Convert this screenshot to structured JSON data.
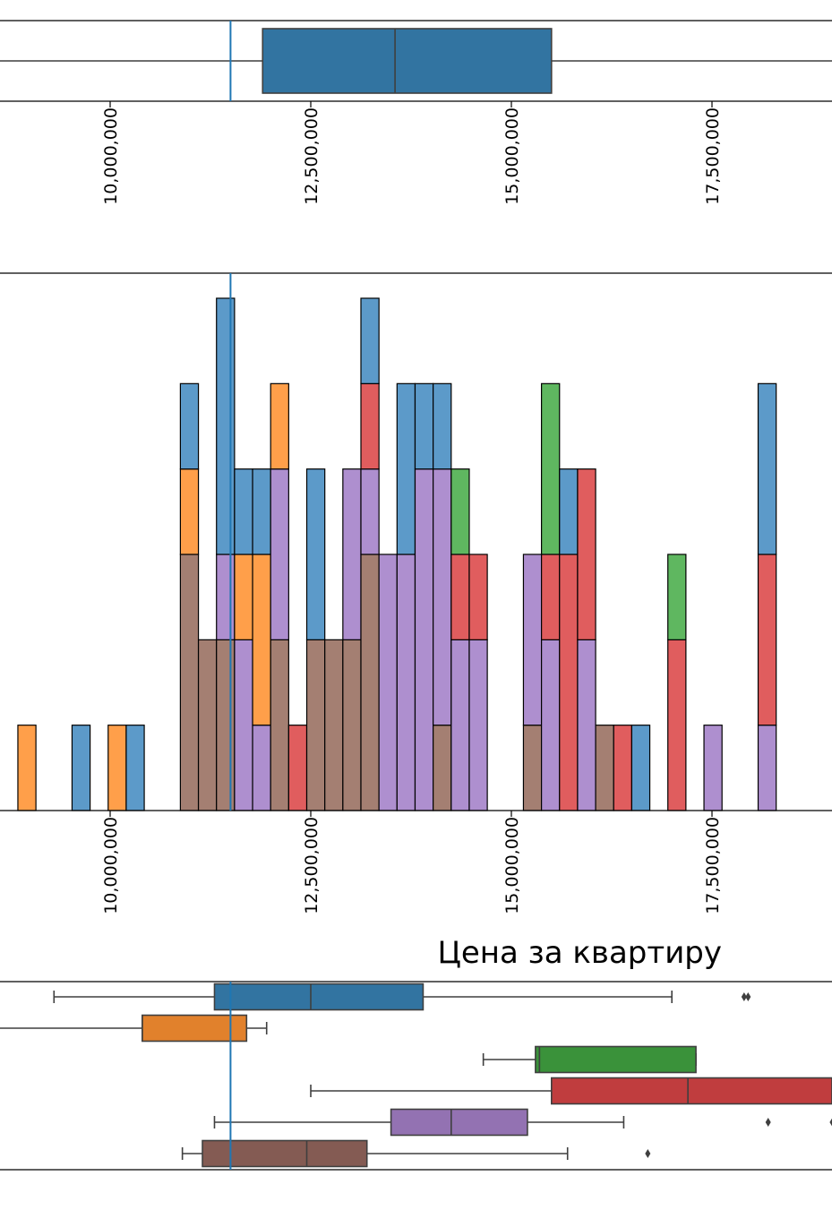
{
  "title": "Цена за квартиру",
  "chart_data": [
    {
      "type": "box",
      "orientation": "horizontal",
      "xlim": [
        8250000,
        20500000
      ],
      "xticks": [
        10000000,
        12500000,
        15000000,
        17500000
      ],
      "xtick_labels": [
        "10,000,000",
        "12,500,000",
        "15,000,000",
        "17,500,000"
      ],
      "reference_line": 11500000,
      "color": "#3274a1",
      "stats": {
        "q1": 11900000,
        "median": 13550000,
        "q3": 15500000
      }
    },
    {
      "type": "stacked_histogram",
      "xlim": [
        8250000,
        20500000
      ],
      "xticks": [
        10000000,
        12500000,
        15000000,
        17500000
      ],
      "xtick_labels": [
        "10,000,000",
        "12,500,000",
        "15,000,000",
        "17,500,000"
      ],
      "ymax": 6,
      "bin_width": 225000,
      "reference_line": 11500000,
      "colors": [
        "#a47f72",
        "#ae8fcf",
        "#e05d5e",
        "#5fb760",
        "#ff9f4a",
        "#5c9ac9"
      ],
      "bins": [
        {
          "x": 8850000,
          "counts": [
            0,
            0,
            0,
            0,
            1,
            0
          ]
        },
        {
          "x": 9525000,
          "counts": [
            0,
            0,
            0,
            0,
            0,
            1
          ]
        },
        {
          "x": 9975000,
          "counts": [
            0,
            0,
            0,
            0,
            1,
            0
          ]
        },
        {
          "x": 10200000,
          "counts": [
            0,
            0,
            0,
            0,
            0,
            1
          ]
        },
        {
          "x": 10875000,
          "counts": [
            3,
            0,
            0,
            0,
            1,
            1
          ]
        },
        {
          "x": 11100000,
          "counts": [
            2,
            0,
            0,
            0,
            0,
            0
          ]
        },
        {
          "x": 11325000,
          "counts": [
            2,
            1,
            0,
            0,
            0,
            3
          ]
        },
        {
          "x": 11550000,
          "counts": [
            0,
            2,
            0,
            0,
            1,
            1
          ]
        },
        {
          "x": 11775000,
          "counts": [
            0,
            1,
            0,
            0,
            2,
            1
          ]
        },
        {
          "x": 12000000,
          "counts": [
            2,
            2,
            0,
            0,
            1,
            0
          ]
        },
        {
          "x": 12225000,
          "counts": [
            0,
            0,
            1,
            0,
            0,
            0
          ]
        },
        {
          "x": 12450000,
          "counts": [
            2,
            0,
            0,
            0,
            0,
            2
          ]
        },
        {
          "x": 12675000,
          "counts": [
            2,
            0,
            0,
            0,
            0,
            0
          ]
        },
        {
          "x": 12900000,
          "counts": [
            2,
            2,
            0,
            0,
            0,
            0
          ]
        },
        {
          "x": 13125000,
          "counts": [
            3,
            1,
            1,
            0,
            0,
            1
          ]
        },
        {
          "x": 13350000,
          "counts": [
            0,
            3,
            0,
            0,
            0,
            0
          ]
        },
        {
          "x": 13575000,
          "counts": [
            0,
            3,
            0,
            0,
            0,
            2
          ]
        },
        {
          "x": 13800000,
          "counts": [
            0,
            4,
            0,
            0,
            0,
            1
          ]
        },
        {
          "x": 14025000,
          "counts": [
            1,
            3,
            0,
            0,
            0,
            1
          ]
        },
        {
          "x": 14250000,
          "counts": [
            0,
            2,
            1,
            1,
            0,
            0
          ]
        },
        {
          "x": 14475000,
          "counts": [
            0,
            2,
            1,
            0,
            0,
            0
          ]
        },
        {
          "x": 15150000,
          "counts": [
            1,
            2,
            0,
            0,
            0,
            0
          ]
        },
        {
          "x": 15375000,
          "counts": [
            0,
            2,
            1,
            2,
            0,
            0
          ]
        },
        {
          "x": 15600000,
          "counts": [
            0,
            0,
            3,
            0,
            0,
            1
          ]
        },
        {
          "x": 15825000,
          "counts": [
            0,
            2,
            2,
            0,
            0,
            0
          ]
        },
        {
          "x": 16050000,
          "counts": [
            1,
            0,
            0,
            0,
            0,
            0
          ]
        },
        {
          "x": 16275000,
          "counts": [
            0,
            0,
            1,
            0,
            0,
            0
          ]
        },
        {
          "x": 16500000,
          "counts": [
            0,
            0,
            0,
            0,
            0,
            1
          ]
        },
        {
          "x": 16950000,
          "counts": [
            0,
            0,
            2,
            1,
            0,
            0
          ]
        },
        {
          "x": 17400000,
          "counts": [
            0,
            1,
            0,
            0,
            0,
            0
          ]
        },
        {
          "x": 18075000,
          "counts": [
            0,
            1,
            2,
            0,
            0,
            2
          ]
        }
      ]
    },
    {
      "type": "box",
      "orientation": "horizontal",
      "grouped": true,
      "xlim": [
        8250000,
        20500000
      ],
      "reference_line": 11500000,
      "boxes": [
        {
          "color": "#3274a1",
          "whisker_low": 9300000,
          "q1": 11300000,
          "median": 12500000,
          "q3": 13900000,
          "whisker_high": 17000000,
          "outliers": [
            17900000,
            17950000
          ]
        },
        {
          "color": "#e1812c",
          "whisker_low": 8550000,
          "q1": 10400000,
          "median": 10400000,
          "q3": 11700000,
          "whisker_high": 11950000,
          "outliers": []
        },
        {
          "color": "#3a923a",
          "whisker_low": 14650000,
          "q1": 15300000,
          "median": 15350000,
          "q3": 17300000,
          "whisker_high": 17300000,
          "outliers": []
        },
        {
          "color": "#c03d3e",
          "whisker_low": 12500000,
          "q1": 15500000,
          "median": 17200000,
          "q3": 20500000,
          "whisker_high": 20500000,
          "outliers": []
        },
        {
          "color": "#9372b2",
          "whisker_low": 11300000,
          "q1": 13500000,
          "median": 14250000,
          "q3": 15200000,
          "whisker_high": 16400000,
          "outliers": [
            18200000,
            19000000
          ]
        },
        {
          "color": "#845b53",
          "whisker_low": 10900000,
          "q1": 11150000,
          "median": 12450000,
          "q3": 13200000,
          "whisker_high": 15700000,
          "outliers": [
            16700000
          ]
        }
      ]
    }
  ]
}
